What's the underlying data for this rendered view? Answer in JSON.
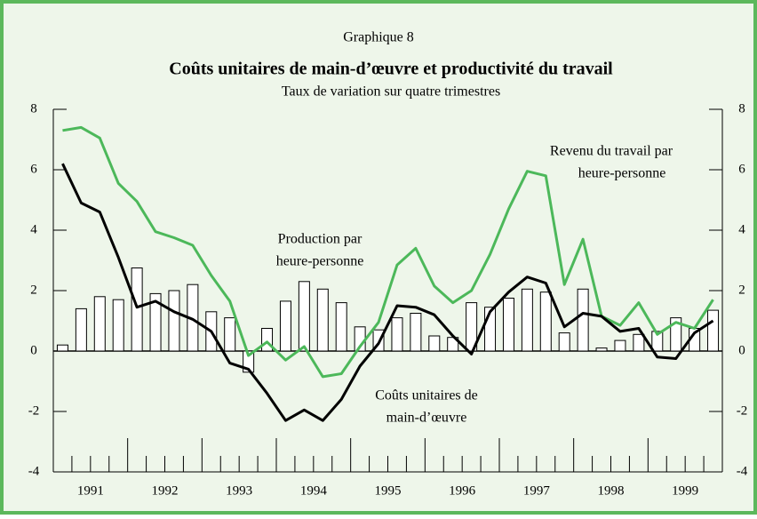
{
  "chart_data": {
    "type": "combo",
    "heading": "Graphique 8",
    "title": "Coûts unitaires de main-d’œuvre et productivité du travail",
    "subtitle": "Taux de variation sur quatre trimestres",
    "years": [
      "1991",
      "1992",
      "1993",
      "1994",
      "1995",
      "1996",
      "1997",
      "1998",
      "1999"
    ],
    "ylim": [
      -4,
      8
    ],
    "yticks": [
      -4,
      -2,
      0,
      2,
      4,
      6,
      8
    ],
    "series": [
      {
        "name": "Production par heure-personne",
        "type": "bar",
        "color": "#ffffff",
        "values": [
          0.2,
          1.4,
          1.8,
          1.7,
          2.75,
          1.9,
          2.0,
          2.2,
          1.3,
          1.1,
          -0.7,
          0.75,
          1.65,
          2.3,
          2.05,
          1.6,
          0.8,
          0.7,
          1.1,
          1.25,
          0.5,
          0.45,
          1.6,
          1.45,
          1.75,
          2.05,
          1.95,
          0.6,
          2.05,
          0.1,
          0.35,
          0.55,
          0.65,
          1.1,
          0.75,
          1.35
        ]
      },
      {
        "name": "Revenu du travail par heure-personne",
        "type": "line",
        "color": "#4cb85a",
        "values": [
          7.3,
          7.4,
          7.05,
          5.55,
          4.95,
          3.95,
          3.75,
          3.5,
          2.5,
          1.65,
          -0.15,
          0.3,
          -0.3,
          0.15,
          -0.85,
          -0.75,
          0.15,
          0.95,
          2.85,
          3.4,
          2.15,
          1.6,
          2.0,
          3.2,
          4.7,
          5.95,
          5.8,
          2.2,
          3.7,
          1.15,
          0.85,
          1.6,
          0.55,
          0.95,
          0.75,
          1.7
        ]
      },
      {
        "name": "Coûts unitaires de main-d’œuvre",
        "type": "line",
        "color": "#000000",
        "values": [
          6.2,
          4.9,
          4.6,
          3.1,
          1.45,
          1.65,
          1.3,
          1.05,
          0.65,
          -0.4,
          -0.6,
          -1.4,
          -2.3,
          -1.95,
          -2.3,
          -1.6,
          -0.5,
          0.25,
          1.5,
          1.45,
          1.2,
          0.5,
          -0.1,
          1.3,
          1.95,
          2.45,
          2.25,
          0.8,
          1.25,
          1.15,
          0.65,
          0.75,
          -0.2,
          -0.25,
          0.6,
          1.0
        ]
      }
    ],
    "annotations": [
      [
        "Revenu du travail par",
        "heure-personne"
      ],
      [
        "Production par",
        "heure-personne"
      ],
      [
        "Coûts unitaires de",
        "main-d’œuvre"
      ]
    ]
  }
}
